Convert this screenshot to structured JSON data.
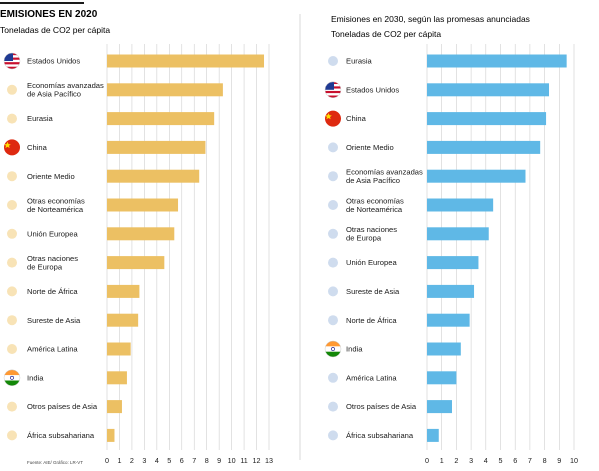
{
  "source": "Fuente: AIE/ Gráfico: LR-VT",
  "colors": {
    "left_bar": "#ecc063",
    "right_bar": "#5fb8e6",
    "left_dot": "#f8e3b6",
    "right_dot": "#cfdcee",
    "grid": "#cfcfcf",
    "divider": "#d9d9d9"
  },
  "chart_data": [
    {
      "type": "bar",
      "orientation": "horizontal",
      "title": "EMISIONES EN 2020",
      "subtitle": "Toneladas de CO2 per cápita",
      "categories": [
        "Estados Unidos",
        "Economías avanzadas de Asia Pacífico",
        "Eurasia",
        "China",
        "Oriente Medio",
        "Otras economías de Norteamérica",
        "Unión Europea",
        "Otras naciones de Europa",
        "Norte de África",
        "Sureste de Asia",
        "América Latina",
        "India",
        "Otros países de Asia",
        "África subsahariana"
      ],
      "category_lines": [
        [
          "Estados Unidos"
        ],
        [
          "Economías avanzadas",
          "de Asia Pacífico"
        ],
        [
          "Eurasia"
        ],
        [
          "China"
        ],
        [
          "Oriente Medio"
        ],
        [
          "Otras economías",
          "de Norteamérica"
        ],
        [
          "Unión Europea"
        ],
        [
          "Otras naciones",
          "de Europa"
        ],
        [
          "Norte de África"
        ],
        [
          "Sureste de Asia"
        ],
        [
          "América Latina"
        ],
        [
          "India"
        ],
        [
          "Otros países de Asia"
        ],
        [
          "África subsahariana"
        ]
      ],
      "icons": [
        "us-flag-icon",
        "dot-icon",
        "dot-icon",
        "china-flag-icon",
        "dot-icon",
        "dot-icon",
        "dot-icon",
        "dot-icon",
        "dot-icon",
        "dot-icon",
        "dot-icon",
        "india-flag-icon",
        "dot-icon",
        "dot-icon"
      ],
      "values": [
        12.6,
        9.3,
        8.6,
        7.9,
        7.4,
        5.7,
        5.4,
        4.6,
        2.6,
        2.5,
        1.9,
        1.6,
        1.2,
        0.6
      ],
      "xlim": [
        0,
        13
      ],
      "ticks": [
        0,
        1,
        2,
        3,
        4,
        5,
        6,
        7,
        8,
        9,
        10,
        11,
        12,
        13
      ],
      "grid": true
    },
    {
      "type": "bar",
      "orientation": "horizontal",
      "title": "Emisiones en 2030, según las promesas anunciadas",
      "subtitle": "Toneladas de CO2 per cápita",
      "categories": [
        "Eurasia",
        "Estados Unidos",
        "China",
        "Oriente Medio",
        "Economías avanzadas de Asia Pacífico",
        "Otras economías de Norteamérica",
        "Otras naciones de Europa",
        "Unión Europea",
        "Sureste de Asia",
        "Norte de África",
        "India",
        "América Latina",
        "Otros países de Asia",
        "África subsahariana"
      ],
      "category_lines": [
        [
          "Eurasia"
        ],
        [
          "Estados Unidos"
        ],
        [
          "China"
        ],
        [
          "Oriente Medio"
        ],
        [
          "Economías avanzadas",
          "de Asia Pacífico"
        ],
        [
          "Otras economías",
          "de Norteamérica"
        ],
        [
          "Otras naciones",
          "de Europa"
        ],
        [
          "Unión Europea"
        ],
        [
          "Sureste de Asia"
        ],
        [
          "Norte de África"
        ],
        [
          "India"
        ],
        [
          "América Latina"
        ],
        [
          "Otros países de Asia"
        ],
        [
          "África subsahariana"
        ]
      ],
      "icons": [
        "dot-icon",
        "us-flag-icon",
        "china-flag-icon",
        "dot-icon",
        "dot-icon",
        "dot-icon",
        "dot-icon",
        "dot-icon",
        "dot-icon",
        "dot-icon",
        "india-flag-icon",
        "dot-icon",
        "dot-icon",
        "dot-icon"
      ],
      "values": [
        9.5,
        8.3,
        8.1,
        7.7,
        6.7,
        4.5,
        4.2,
        3.5,
        3.2,
        2.9,
        2.3,
        2.0,
        1.7,
        0.8
      ],
      "xlim": [
        0,
        10
      ],
      "ticks": [
        0,
        1,
        2,
        3,
        4,
        5,
        6,
        7,
        8,
        9,
        10
      ],
      "grid": true
    }
  ]
}
